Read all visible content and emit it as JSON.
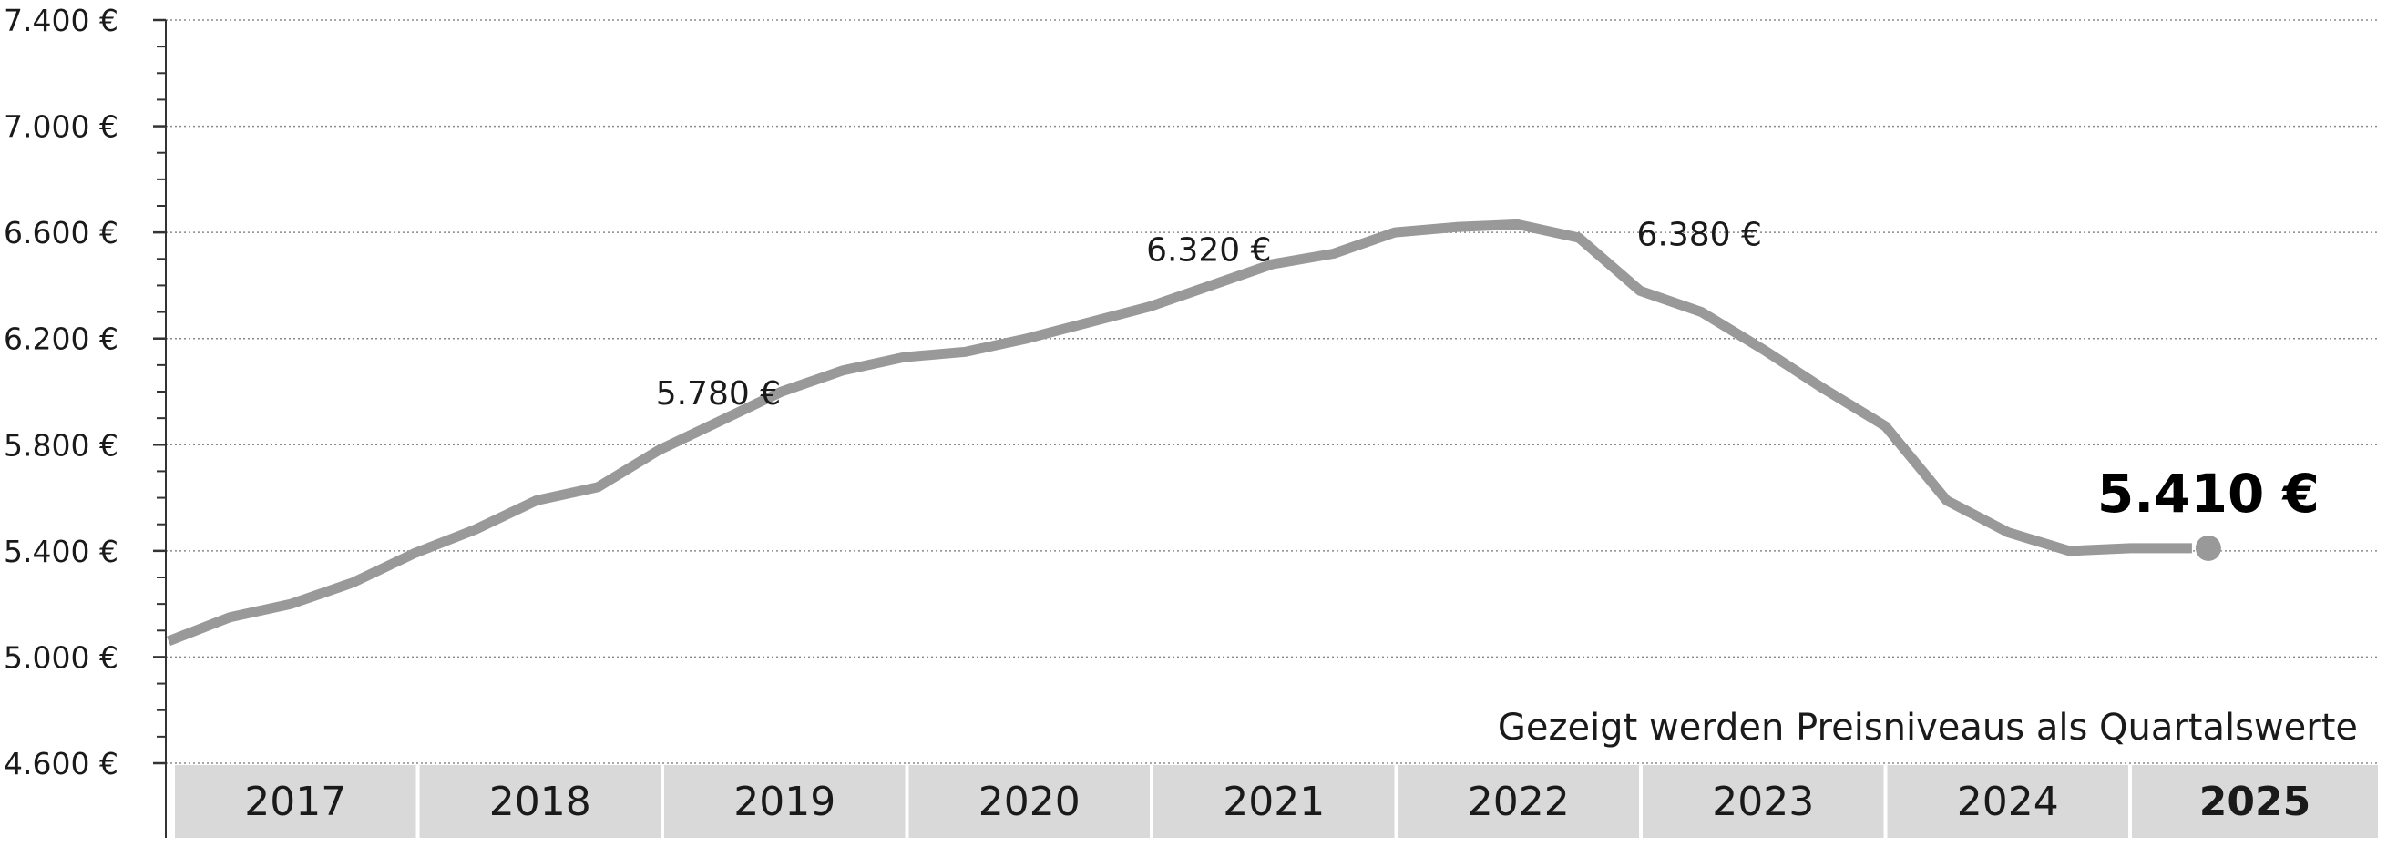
{
  "chart_data": {
    "type": "line",
    "x_unit": "quarter",
    "y_unit": "€",
    "ylim": [
      4600,
      7400
    ],
    "y_ticks": [
      "4.600 €",
      "5.000 €",
      "5.400 €",
      "5.800 €",
      "6.200 €",
      "6.600 €",
      "7.000 €",
      "7.400 €"
    ],
    "y_tick_values": [
      4600,
      5000,
      5400,
      5800,
      6200,
      6600,
      7000,
      7400
    ],
    "grid": true,
    "years": [
      "2017",
      "2018",
      "2019",
      "2020",
      "2021",
      "2022",
      "2023",
      "2024",
      "2025"
    ],
    "highlight_year": "2025",
    "series": [
      {
        "values": [
          5060,
          5150,
          5200,
          5280,
          5390,
          5480,
          5590,
          5640,
          5780,
          5890,
          6000,
          6080,
          6130,
          6150,
          6200,
          6260,
          6320,
          6400,
          6480,
          6520,
          6600,
          6620,
          6630,
          6580,
          6380,
          6300,
          6160,
          6010,
          5870,
          5590,
          5470,
          5400,
          5410,
          5410
        ]
      }
    ],
    "annotations": [
      {
        "text": "5.780 €",
        "point_index": 8
      },
      {
        "text": "6.320 €",
        "point_index": 16
      },
      {
        "text": "6.380 €",
        "point_index": 24
      },
      {
        "text": "5.410 €",
        "point_index": 33,
        "emphasis": true
      }
    ],
    "note": "Gezeigt werden Preisniveaus als Quartalswerte",
    "colors": {
      "line": "#999999",
      "grid": "#8a8a8a",
      "axis": "#333333",
      "year_band": "#d9d9d9",
      "text": "#1a1a1a"
    }
  }
}
